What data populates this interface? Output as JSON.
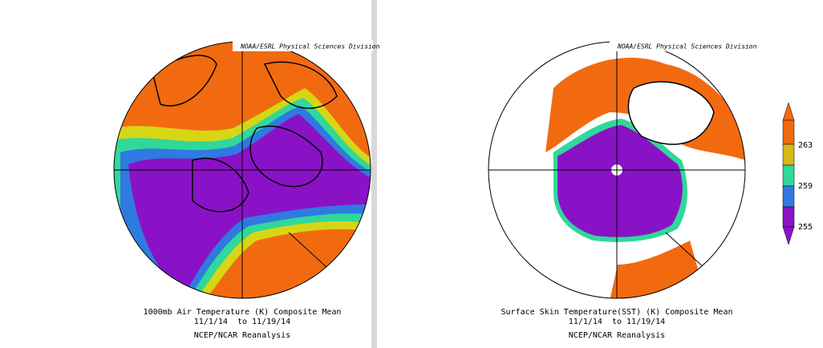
{
  "panels": [
    {
      "credit": "NOAA/ESRL Physical Sciences Division",
      "caption": [
        "1000mb Air Temperature (K) Composite Mean",
        "11/1/14  to 11/19/14",
        "NCEP/NCAR Reanalysis"
      ]
    },
    {
      "credit": "NOAA/ESRL Physical Sciences Division",
      "caption": [
        "Surface Skin Temperature(SST) (K) Composite Mean",
        "11/1/14  to 11/19/14",
        "NCEP/NCAR Reanalysis"
      ]
    }
  ],
  "colorbar": {
    "ticks": [
      263,
      259,
      255
    ]
  }
}
